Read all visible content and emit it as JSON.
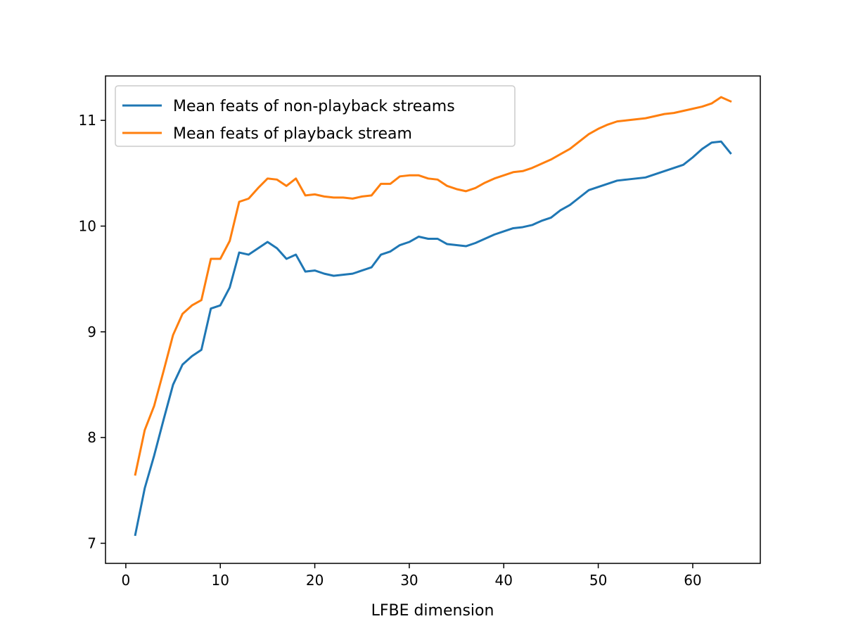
{
  "chart_data": {
    "type": "line",
    "title": "",
    "xlabel": "LFBE dimension",
    "ylabel": "",
    "xlim": [
      -2.15,
      67.15
    ],
    "ylim": [
      6.81,
      11.42
    ],
    "xticks": [
      0,
      10,
      20,
      30,
      40,
      50,
      60
    ],
    "yticks": [
      7,
      8,
      9,
      10,
      11
    ],
    "grid": false,
    "legend_position": "top-left",
    "x": [
      1,
      2,
      3,
      4,
      5,
      6,
      7,
      8,
      9,
      10,
      11,
      12,
      13,
      14,
      15,
      16,
      17,
      18,
      19,
      20,
      21,
      22,
      23,
      24,
      25,
      26,
      27,
      28,
      29,
      30,
      31,
      32,
      33,
      34,
      35,
      36,
      37,
      38,
      39,
      40,
      41,
      42,
      43,
      44,
      45,
      46,
      47,
      48,
      49,
      50,
      51,
      52,
      53,
      54,
      55,
      56,
      57,
      58,
      59,
      60,
      61,
      62,
      63,
      64
    ],
    "series": [
      {
        "name": "Mean feats of non-playback streams",
        "color": "#1f77b4",
        "values": [
          7.08,
          7.52,
          7.83,
          8.17,
          8.5,
          8.69,
          8.77,
          8.83,
          9.22,
          9.25,
          9.42,
          9.75,
          9.73,
          9.79,
          9.85,
          9.79,
          9.69,
          9.73,
          9.57,
          9.58,
          9.55,
          9.53,
          9.54,
          9.55,
          9.58,
          9.61,
          9.73,
          9.76,
          9.82,
          9.85,
          9.9,
          9.88,
          9.88,
          9.83,
          9.82,
          9.81,
          9.84,
          9.88,
          9.92,
          9.95,
          9.98,
          9.99,
          10.01,
          10.05,
          10.08,
          10.15,
          10.2,
          10.27,
          10.34,
          10.37,
          10.4,
          10.43,
          10.44,
          10.45,
          10.46,
          10.49,
          10.52,
          10.55,
          10.58,
          10.65,
          10.73,
          10.79,
          10.8,
          10.69
        ]
      },
      {
        "name": "Mean feats of playback stream",
        "color": "#ff7f0e",
        "values": [
          7.65,
          8.07,
          8.3,
          8.63,
          8.97,
          9.17,
          9.25,
          9.3,
          9.69,
          9.69,
          9.86,
          10.23,
          10.26,
          10.36,
          10.45,
          10.44,
          10.38,
          10.45,
          10.29,
          10.3,
          10.28,
          10.27,
          10.27,
          10.26,
          10.28,
          10.29,
          10.4,
          10.4,
          10.47,
          10.48,
          10.48,
          10.45,
          10.44,
          10.38,
          10.35,
          10.33,
          10.36,
          10.41,
          10.45,
          10.48,
          10.51,
          10.52,
          10.55,
          10.59,
          10.63,
          10.68,
          10.73,
          10.8,
          10.87,
          10.92,
          10.96,
          10.99,
          11.0,
          11.01,
          11.02,
          11.04,
          11.06,
          11.07,
          11.09,
          11.11,
          11.13,
          11.16,
          11.22,
          11.18
        ]
      }
    ]
  }
}
